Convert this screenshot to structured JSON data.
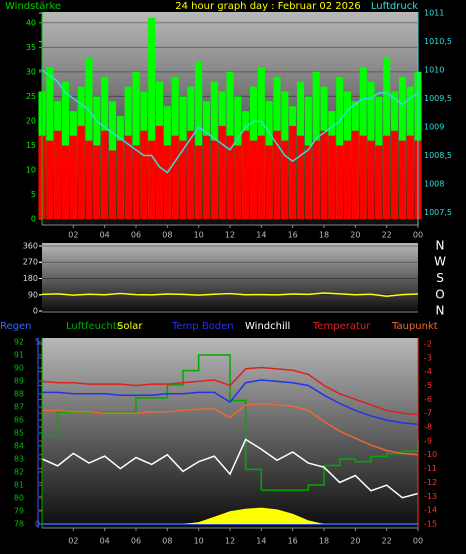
{
  "chart_data": [
    {
      "type": "bar",
      "title": "24 hour graph day : Februar 02 2026",
      "ylabel": "Windstärke",
      "y2label": "Luftdruck",
      "x": [
        0,
        0.5,
        1,
        1.5,
        2,
        2.5,
        3,
        3.5,
        4,
        4.5,
        5,
        5.5,
        6,
        6.5,
        7,
        7.5,
        8,
        8.5,
        9,
        9.5,
        10,
        10.5,
        11,
        11.5,
        12,
        12.5,
        13,
        13.5,
        14,
        14.5,
        15,
        15.5,
        16,
        16.5,
        17,
        17.5,
        18,
        18.5,
        19,
        19.5,
        20,
        20.5,
        21,
        21.5,
        22,
        22.5,
        23,
        23.5,
        24
      ],
      "xlim": [
        0,
        24
      ],
      "xticks": [
        {
          "value": 2,
          "label": "02"
        },
        {
          "value": 4,
          "label": "04"
        },
        {
          "value": 6,
          "label": "06"
        },
        {
          "value": 8,
          "label": "08"
        },
        10,
        12,
        14,
        16,
        18,
        20,
        22,
        {
          "value": 24,
          "label": "00"
        }
      ],
      "ylim": [
        -1.2,
        42.2
      ],
      "yticks": [
        0,
        5,
        10,
        15,
        20,
        25,
        30,
        35,
        40
      ],
      "y2lim": [
        1007.28,
        1011.02
      ],
      "y2ticks": [
        {
          "value": 1007.5,
          "label": "1007,5"
        },
        1008,
        {
          "value": 1008.5,
          "label": "1008,5"
        },
        1009,
        {
          "value": 1009.5,
          "label": "1009,5"
        },
        1010,
        {
          "value": 1010.5,
          "label": "1010,5"
        },
        1011
      ],
      "grid": true,
      "series": [
        {
          "color": "#00ff00",
          "values": [
            26,
            31,
            24,
            28,
            22,
            27,
            33,
            25,
            29,
            24,
            21,
            27,
            30,
            26,
            41,
            28,
            23,
            29,
            25,
            27,
            32,
            24,
            28,
            26,
            30,
            25,
            22,
            27,
            31,
            24,
            29,
            26,
            23,
            28,
            25,
            30,
            27,
            22,
            29,
            26,
            24,
            31,
            28,
            25,
            33,
            26,
            29,
            27,
            30
          ]
        },
        {
          "color": "#ff0000",
          "values": [
            17,
            16,
            18,
            15,
            17,
            19,
            16,
            15,
            18,
            14,
            16,
            17,
            15,
            18,
            16,
            19,
            15,
            17,
            16,
            18,
            15,
            17,
            16,
            19,
            17,
            15,
            18,
            16,
            17,
            15,
            18,
            16,
            19,
            17,
            15,
            16,
            18,
            17,
            15,
            16,
            18,
            17,
            16,
            15,
            17,
            18,
            16,
            17,
            16
          ]
        },
        {
          "color": "#33dddd",
          "type": "line",
          "axis": "y2",
          "values": [
            1010.0,
            1009.9,
            1009.8,
            1009.6,
            1009.5,
            1009.4,
            1009.3,
            1009.1,
            1009.0,
            1008.9,
            1008.8,
            1008.7,
            1008.6,
            1008.5,
            1008.5,
            1008.3,
            1008.2,
            1008.4,
            1008.6,
            1008.8,
            1009.0,
            1008.9,
            1008.8,
            1008.7,
            1008.6,
            1008.8,
            1009.0,
            1009.1,
            1009.1,
            1008.9,
            1008.7,
            1008.5,
            1008.4,
            1008.5,
            1008.6,
            1008.8,
            1008.9,
            1009.0,
            1009.1,
            1009.3,
            1009.4,
            1009.5,
            1009.5,
            1009.6,
            1009.6,
            1009.5,
            1009.4,
            1009.5,
            1009.6
          ]
        }
      ]
    },
    {
      "type": "line",
      "x": [
        0,
        1,
        2,
        3,
        4,
        5,
        6,
        7,
        8,
        9,
        10,
        11,
        12,
        13,
        14,
        15,
        16,
        17,
        18,
        19,
        20,
        21,
        22,
        23,
        24
      ],
      "xlim": [
        0,
        24
      ],
      "ylim": [
        -5.5,
        376.6
      ],
      "yticks": [
        0,
        90,
        180,
        270,
        360
      ],
      "y2lim": [
        -5.5,
        376.6
      ],
      "y2ticks": [
        {
          "value": 360,
          "label": "N"
        },
        {
          "value": 270,
          "label": "W"
        },
        {
          "value": 180,
          "label": "S"
        },
        {
          "value": 90,
          "label": "O"
        },
        {
          "value": 0,
          "label": "N"
        }
      ],
      "grid": true,
      "series": [
        {
          "color": "#ffff00",
          "values": [
            92,
            95,
            88,
            93,
            90,
            97,
            91,
            89,
            94,
            92,
            88,
            93,
            96,
            90,
            91,
            89,
            94,
            92,
            100,
            95,
            90,
            93,
            82,
            91,
            94
          ]
        }
      ]
    },
    {
      "type": "line",
      "x": [
        0,
        1,
        2,
        3,
        4,
        5,
        6,
        7,
        8,
        9,
        10,
        11,
        12,
        13,
        14,
        15,
        16,
        17,
        18,
        19,
        20,
        21,
        22,
        23,
        24
      ],
      "xlim": [
        0,
        24
      ],
      "xticks": [
        {
          "value": 2,
          "label": "02"
        },
        {
          "value": 4,
          "label": "04"
        },
        {
          "value": 6,
          "label": "06"
        },
        {
          "value": 8,
          "label": "08"
        },
        10,
        12,
        14,
        16,
        18,
        20,
        22,
        {
          "value": 24,
          "label": "00"
        }
      ],
      "ylim": [
        77.69,
        92.31
      ],
      "yticks": [
        78,
        79,
        80,
        81,
        82,
        83,
        84,
        85,
        86,
        87,
        88,
        89,
        90,
        91,
        92
      ],
      "y2lim": [
        -15.29,
        -1.57
      ],
      "y2ticks": [
        -15,
        -14,
        -13,
        -12,
        -11,
        -10,
        -9,
        -8,
        -7,
        -6,
        -5,
        -4,
        -3,
        -2
      ],
      "y3lim": [
        -0.11,
        5.11
      ],
      "y3ticks": [
        0,
        5
      ],
      "series": [
        {
          "name": "Regen",
          "color": "#3366ff",
          "axis": "y3",
          "values": [
            0,
            0,
            0,
            0,
            0,
            0,
            0,
            0,
            0,
            0,
            0,
            0,
            0,
            0,
            0,
            0,
            0,
            0,
            0,
            0,
            0,
            0,
            0,
            0,
            0
          ]
        },
        {
          "name": "Luftfeuchte",
          "color": "#00aa00",
          "step": true,
          "values": [
            84.8,
            86.6,
            86.6,
            86.6,
            86.6,
            86.6,
            87.7,
            87.7,
            88.7,
            89.8,
            91.0,
            91.0,
            87.5,
            82.2,
            80.6,
            80.6,
            80.6,
            81.0,
            82.5,
            83.0,
            82.8,
            83.2,
            83.4,
            83.6,
            84.5
          ]
        },
        {
          "name": "Solar",
          "color": "#ffff00",
          "type": "area",
          "axis": "y3",
          "values": [
            0,
            0,
            0,
            0,
            0,
            0,
            0,
            0,
            0,
            0,
            0.05,
            0.2,
            0.35,
            0.42,
            0.45,
            0.4,
            0.28,
            0.1,
            0,
            0,
            0,
            0,
            0,
            0,
            0
          ]
        },
        {
          "name": "Temp Boden",
          "color": "#2233ee",
          "axis": "y2",
          "values": [
            -5.5,
            -5.5,
            -5.6,
            -5.6,
            -5.6,
            -5.7,
            -5.7,
            -5.7,
            -5.6,
            -5.6,
            -5.5,
            -5.5,
            -6.2,
            -4.8,
            -4.6,
            -4.7,
            -4.8,
            -5.0,
            -5.7,
            -6.3,
            -6.8,
            -7.2,
            -7.5,
            -7.7,
            -7.8
          ]
        },
        {
          "name": "Windchill",
          "color": "#ffffff",
          "axis": "y2",
          "values": [
            -10.3,
            -10.8,
            -9.9,
            -10.6,
            -10.1,
            -11.0,
            -10.2,
            -10.7,
            -10.0,
            -11.2,
            -10.5,
            -10.1,
            -11.4,
            -8.9,
            -9.6,
            -10.4,
            -9.8,
            -10.6,
            -10.9,
            -12.0,
            -11.5,
            -12.6,
            -12.2,
            -13.1,
            -12.8
          ]
        },
        {
          "name": "Temperatur",
          "color": "#dd2222",
          "axis": "y2",
          "values": [
            -4.7,
            -4.8,
            -4.8,
            -4.9,
            -4.9,
            -4.9,
            -5.0,
            -4.9,
            -4.9,
            -4.8,
            -4.7,
            -4.6,
            -5.0,
            -3.8,
            -3.7,
            -3.8,
            -3.9,
            -4.2,
            -5.0,
            -5.6,
            -6.0,
            -6.4,
            -6.8,
            -7.0,
            -7.1
          ]
        },
        {
          "name": "Taupunkt",
          "color": "#ee6633",
          "axis": "y2",
          "values": [
            -6.8,
            -6.8,
            -6.9,
            -6.9,
            -7.0,
            -7.0,
            -7.0,
            -6.9,
            -6.9,
            -6.8,
            -6.7,
            -6.7,
            -7.3,
            -6.4,
            -6.3,
            -6.4,
            -6.5,
            -6.8,
            -7.6,
            -8.3,
            -8.8,
            -9.3,
            -9.7,
            -9.9,
            -10.0
          ]
        }
      ]
    }
  ]
}
